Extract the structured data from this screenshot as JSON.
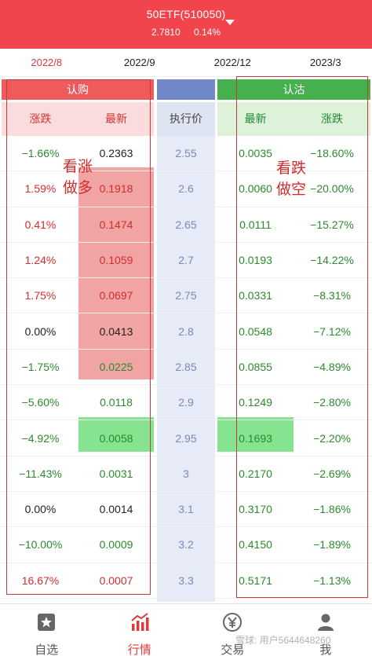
{
  "header": {
    "title": "50ETF(510050)",
    "price": "2.7810",
    "change": "0.14%"
  },
  "months": [
    "2022/8",
    "2022/9",
    "2022/12",
    "2023/3"
  ],
  "groups": {
    "call": "认购",
    "put": "认沽"
  },
  "columns": {
    "call_change": "涨跌",
    "call_last": "最新",
    "strike": "执行价",
    "put_last": "最新",
    "put_change": "涨跌"
  },
  "annotations": {
    "call_1": "看涨",
    "call_2": "做多",
    "put_1": "看跌",
    "put_2": "做空"
  },
  "rows": [
    {
      "call_change": "−1.66%",
      "call_last": "0.2363",
      "strike": "2.55",
      "put_last": "0.0035",
      "put_change": "−18.60%",
      "cc": "neg",
      "cl": "neu",
      "pl": "neg",
      "pc": "neg"
    },
    {
      "call_change": "1.59%",
      "call_last": "0.1918",
      "strike": "2.6",
      "put_last": "0.0060",
      "put_change": "−20.00%",
      "cc": "pos",
      "cl": "pos",
      "pl": "neg",
      "pc": "neg"
    },
    {
      "call_change": "0.41%",
      "call_last": "0.1474",
      "strike": "2.65",
      "put_last": "0.0111",
      "put_change": "−15.27%",
      "cc": "pos",
      "cl": "pos",
      "pl": "neg",
      "pc": "neg"
    },
    {
      "call_change": "1.24%",
      "call_last": "0.1059",
      "strike": "2.7",
      "put_last": "0.0193",
      "put_change": "−14.22%",
      "cc": "pos",
      "cl": "pos",
      "pl": "neg",
      "pc": "neg"
    },
    {
      "call_change": "1.75%",
      "call_last": "0.0697",
      "strike": "2.75",
      "put_last": "0.0331",
      "put_change": "−8.31%",
      "cc": "pos",
      "cl": "pos",
      "pl": "neg",
      "pc": "neg"
    },
    {
      "call_change": "0.00%",
      "call_last": "0.0413",
      "strike": "2.8",
      "put_last": "0.0548",
      "put_change": "−7.12%",
      "cc": "neu",
      "cl": "neu",
      "pl": "neg",
      "pc": "neg"
    },
    {
      "call_change": "−1.75%",
      "call_last": "0.0225",
      "strike": "2.85",
      "put_last": "0.0855",
      "put_change": "−4.89%",
      "cc": "neg",
      "cl": "neg",
      "pl": "neg",
      "pc": "neg"
    },
    {
      "call_change": "−5.60%",
      "call_last": "0.0118",
      "strike": "2.9",
      "put_last": "0.1249",
      "put_change": "−2.80%",
      "cc": "neg",
      "cl": "neg",
      "pl": "neg",
      "pc": "neg"
    },
    {
      "call_change": "−4.92%",
      "call_last": "0.0058",
      "strike": "2.95",
      "put_last": "0.1693",
      "put_change": "−2.20%",
      "cc": "neg",
      "cl": "neg",
      "pl": "neg",
      "pc": "neg"
    },
    {
      "call_change": "−11.43%",
      "call_last": "0.0031",
      "strike": "3",
      "put_last": "0.2170",
      "put_change": "−2.69%",
      "cc": "neg",
      "cl": "neg",
      "pl": "neg",
      "pc": "neg"
    },
    {
      "call_change": "0.00%",
      "call_last": "0.0014",
      "strike": "3.1",
      "put_last": "0.3170",
      "put_change": "−1.86%",
      "cc": "neu",
      "cl": "neu",
      "pl": "neg",
      "pc": "neg"
    },
    {
      "call_change": "−10.00%",
      "call_last": "0.0009",
      "strike": "3.2",
      "put_last": "0.4150",
      "put_change": "−1.89%",
      "cc": "neg",
      "cl": "neg",
      "pl": "neg",
      "pc": "neg"
    },
    {
      "call_change": "16.67%",
      "call_last": "0.0007",
      "strike": "3.3",
      "put_last": "0.5171",
      "put_change": "−1.13%",
      "cc": "pos",
      "cl": "pos",
      "pl": "neg",
      "pc": "neg"
    }
  ],
  "nav": [
    {
      "label": "自选",
      "icon": "star-icon"
    },
    {
      "label": "行情",
      "icon": "chart-icon"
    },
    {
      "label": "交易",
      "icon": "yen-icon"
    },
    {
      "label": "我",
      "icon": "user-icon"
    }
  ],
  "watermark": "雪球: 用户5644648260",
  "colors": {
    "header": "#f1444c",
    "up": "#d12e2e",
    "down": "#2c8a2c",
    "call_group": "#ef5b5d",
    "put_group": "#46b04e",
    "strike_group": "#7088c8"
  }
}
